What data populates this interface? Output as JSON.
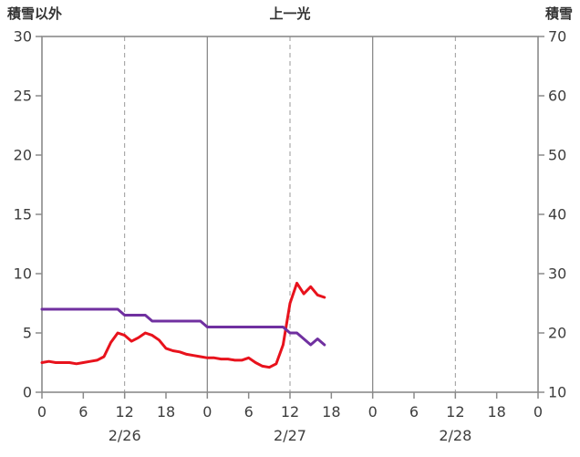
{
  "header": {
    "left_axis_title": "積雪以外",
    "station_name": "上一光",
    "right_axis_title": "積雪"
  },
  "chart_data": {
    "type": "line",
    "title": "上一光",
    "x_unit": "hour",
    "x": [
      0,
      1,
      2,
      3,
      4,
      5,
      6,
      7,
      8,
      9,
      10,
      11,
      12,
      13,
      14,
      15,
      16,
      17,
      18,
      19,
      20,
      21,
      22,
      23,
      24,
      25,
      26,
      27,
      28,
      29,
      30,
      31,
      32,
      33,
      34,
      35,
      36,
      37,
      38,
      39,
      40,
      41
    ],
    "x_axis": {
      "range": [
        0,
        72
      ],
      "tick_hours": [
        0,
        6,
        12,
        18,
        24,
        30,
        36,
        42,
        48,
        54,
        60,
        66,
        72
      ],
      "tick_labels": [
        "0",
        "6",
        "12",
        "18",
        "0",
        "6",
        "12",
        "18",
        "0",
        "6",
        "12",
        "18",
        "0"
      ],
      "solid_lines": [
        24,
        48
      ],
      "dashed_lines": [
        12,
        36,
        60
      ],
      "date_labels": [
        {
          "text": "2/26",
          "hour": 12
        },
        {
          "text": "2/27",
          "hour": 36
        },
        {
          "text": "2/28",
          "hour": 60
        }
      ]
    },
    "y_left": {
      "label": "積雪以外",
      "range": [
        0,
        30
      ],
      "ticks": [
        0,
        5,
        10,
        15,
        20,
        25,
        30
      ]
    },
    "y_right": {
      "label": "積雪",
      "range": [
        10,
        70
      ],
      "ticks": [
        10,
        20,
        30,
        40,
        50,
        60,
        70
      ]
    },
    "series": [
      {
        "name": "積雪以外",
        "axis": "left",
        "color": "#e8121c",
        "line_width": 3,
        "values": [
          2.5,
          2.6,
          2.5,
          2.5,
          2.5,
          2.4,
          2.5,
          2.6,
          2.7,
          3.0,
          4.2,
          5.0,
          4.8,
          4.3,
          4.6,
          5.0,
          4.8,
          4.4,
          3.7,
          3.5,
          3.4,
          3.2,
          3.1,
          3.0,
          2.9,
          2.9,
          2.8,
          2.8,
          2.7,
          2.7,
          2.9,
          2.5,
          2.2,
          2.1,
          2.4,
          4.0,
          7.5,
          9.2,
          8.3,
          8.9,
          8.2,
          8.0
        ]
      },
      {
        "name": "積雪",
        "axis": "right",
        "color": "#7030a0",
        "line_width": 3,
        "values": [
          24,
          24,
          24,
          24,
          24,
          24,
          24,
          24,
          24,
          24,
          24,
          24,
          23,
          23,
          23,
          23,
          22,
          22,
          22,
          22,
          22,
          22,
          22,
          22,
          21,
          21,
          21,
          21,
          21,
          21,
          21,
          21,
          21,
          21,
          21,
          21,
          20,
          20,
          19,
          18,
          19,
          18
        ]
      }
    ],
    "grid": {
      "horizontal": false,
      "vertical": true
    },
    "legend_position": "none",
    "plot_border_color": "#8a8a8a",
    "solid_grid_color": "#8a8a8a",
    "dashed_grid_color": "#9a9a9a",
    "tick_label_color": "#3d3d3d"
  }
}
